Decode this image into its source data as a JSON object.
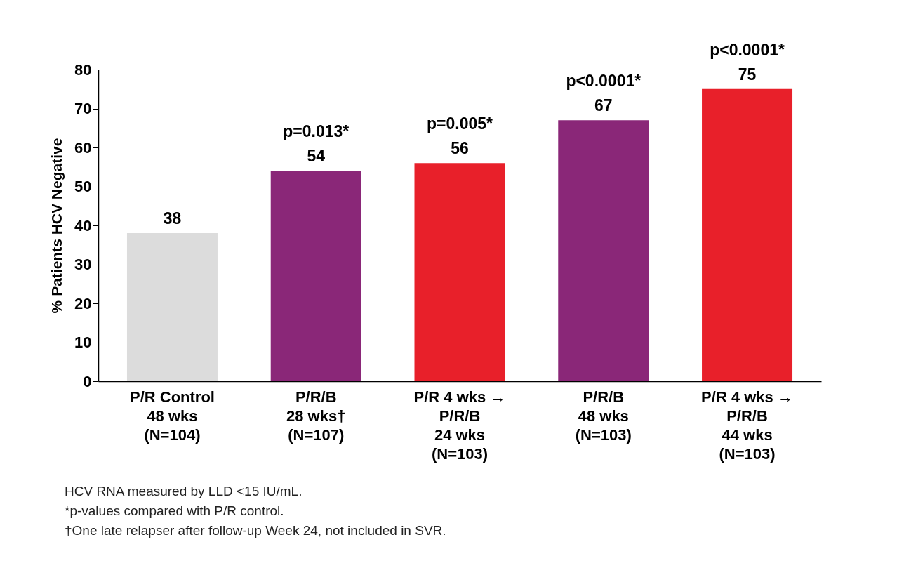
{
  "chart_data": {
    "type": "bar",
    "ylabel": "% Patients HCV Negative",
    "categories": [
      "P/R Control\n48 wks\n(N=104)",
      "P/R/B\n28 wks†\n(N=107)",
      "P/R 4 wks →\nP/R/B\n24 wks\n(N=103)",
      "P/R/B\n48 wks\n(N=103)",
      "P/R 4 wks →\nP/R/B\n44 wks\n(N=103)"
    ],
    "values": [
      38,
      54,
      56,
      67,
      75
    ],
    "colors": [
      "#dcdcdc",
      "#8a2778",
      "#e8202a",
      "#8a2778",
      "#e8202a"
    ],
    "ylim": [
      0,
      80
    ],
    "yticks": [
      0,
      10,
      20,
      30,
      40,
      50,
      60,
      70,
      80
    ],
    "grid": false,
    "data_labels": true,
    "annotations": [
      {
        "text": "p=0.013*",
        "x": "P/R/B\n28 wks†\n(N=107)",
        "y": 54
      },
      {
        "text": "p=0.005*",
        "x": "P/R 4 wks →\nP/R/B\n24 wks\n(N=103)",
        "y": 56
      },
      {
        "text": "p<0.0001*",
        "x": "P/R/B\n48 wks\n(N=103)",
        "y": 67
      },
      {
        "text": "p<0.0001*",
        "x": "P/R 4 wks →\nP/R/B\n44 wks\n(N=103)",
        "y": 75
      },
      "HCV RNA measured by LLD <15 IU/mL.",
      "*p-values compared with P/R control.",
      "†One late relapser after follow-up Week 24, not included in SVR."
    ]
  }
}
